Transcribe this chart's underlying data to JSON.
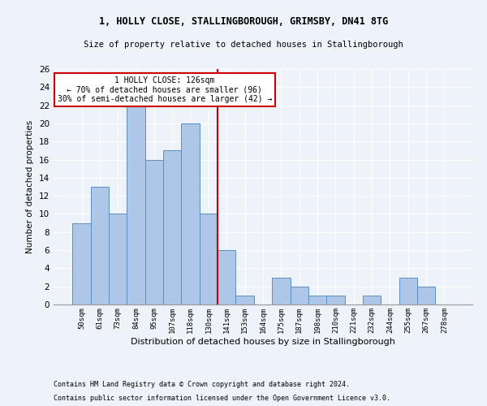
{
  "title1": "1, HOLLY CLOSE, STALLINGBOROUGH, GRIMSBY, DN41 8TG",
  "title2": "Size of property relative to detached houses in Stallingborough",
  "xlabel": "Distribution of detached houses by size in Stallingborough",
  "ylabel": "Number of detached properties",
  "footnote1": "Contains HM Land Registry data © Crown copyright and database right 2024.",
  "footnote2": "Contains public sector information licensed under the Open Government Licence v3.0.",
  "annotation_line1": "1 HOLLY CLOSE: 126sqm",
  "annotation_line2": "← 70% of detached houses are smaller (96)",
  "annotation_line3": "30% of semi-detached houses are larger (42) →",
  "bar_labels": [
    "50sqm",
    "61sqm",
    "73sqm",
    "84sqm",
    "95sqm",
    "107sqm",
    "118sqm",
    "130sqm",
    "141sqm",
    "153sqm",
    "164sqm",
    "175sqm",
    "187sqm",
    "198sqm",
    "210sqm",
    "221sqm",
    "232sqm",
    "244sqm",
    "255sqm",
    "267sqm",
    "278sqm"
  ],
  "bar_values": [
    9,
    13,
    10,
    22,
    16,
    17,
    20,
    10,
    6,
    1,
    0,
    3,
    2,
    1,
    1,
    0,
    1,
    0,
    3,
    2,
    0
  ],
  "bar_color": "#aec6e8",
  "bar_edge_color": "#5a8fc0",
  "vline_x": 7.5,
  "vline_color": "#cc0000",
  "annotation_box_color": "#cc0000",
  "background_color": "#eef2f9",
  "ylim": [
    0,
    26
  ],
  "yticks": [
    0,
    2,
    4,
    6,
    8,
    10,
    12,
    14,
    16,
    18,
    20,
    22,
    24,
    26
  ]
}
